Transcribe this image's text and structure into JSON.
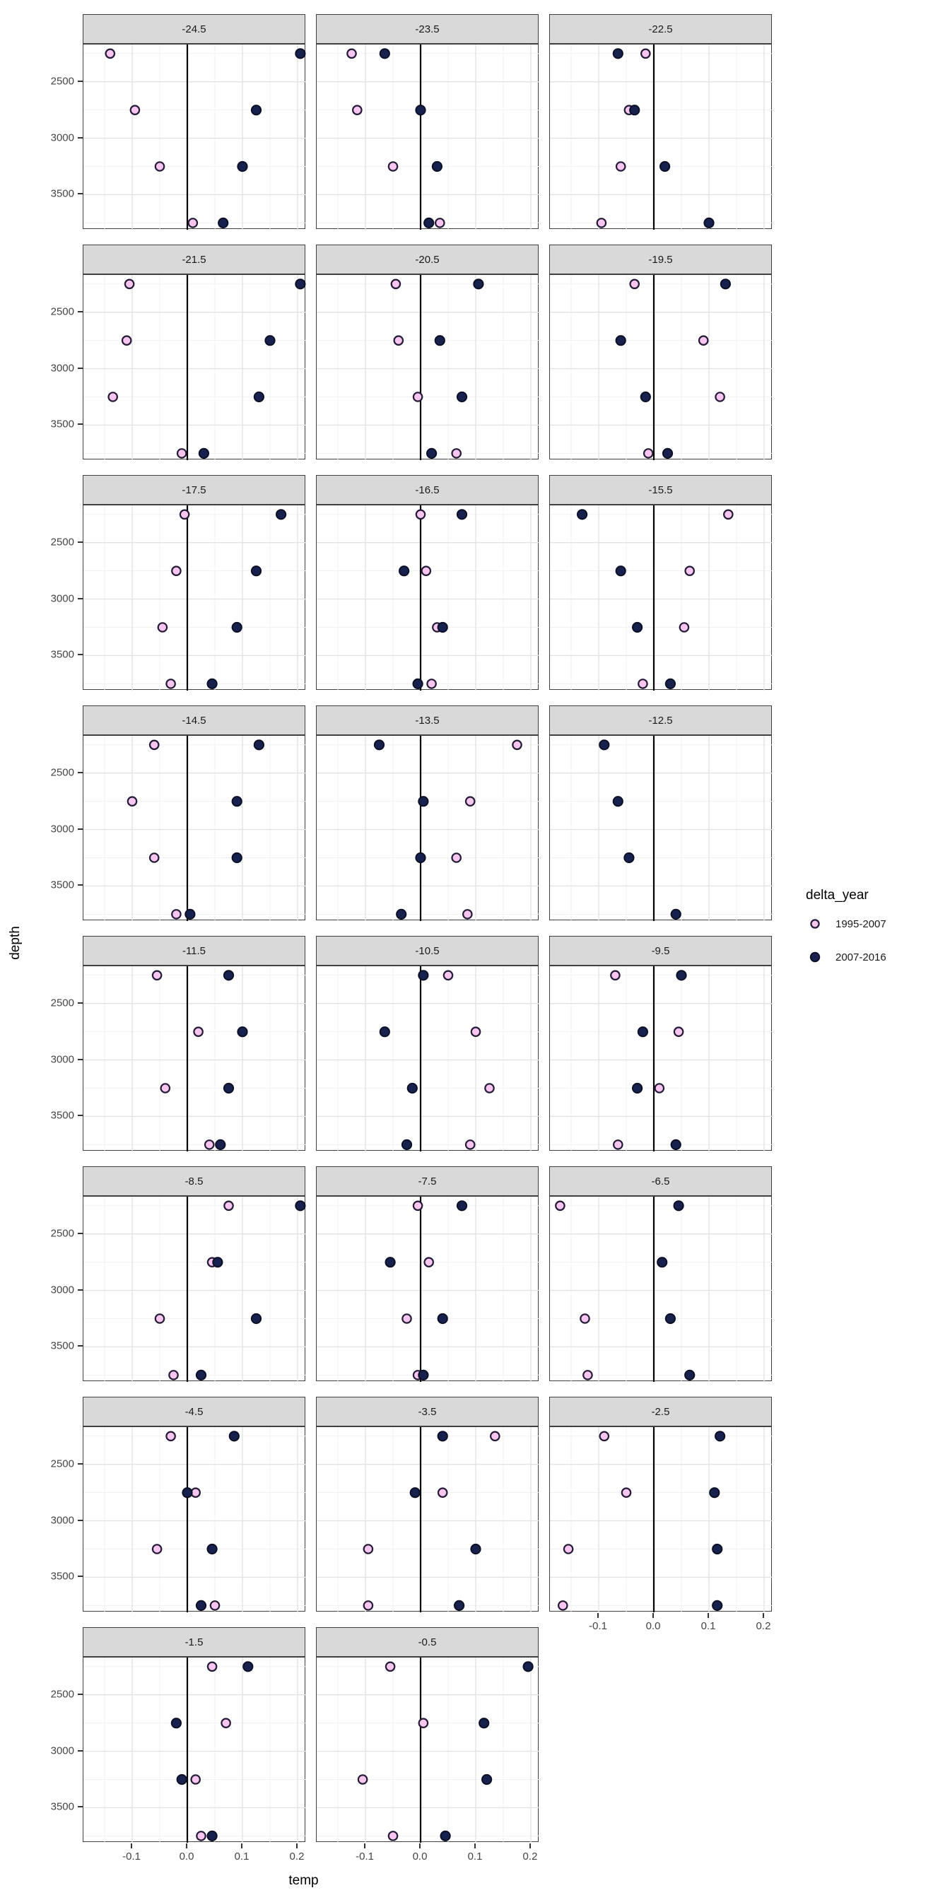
{
  "figure": {
    "background": "#ffffff"
  },
  "axes": {
    "x_title": "temp",
    "y_title": "depth",
    "x_tick_labels": [
      "-0.1",
      "0.0",
      "0.1",
      "0.2"
    ],
    "x_tick_values": [
      -0.1,
      0.0,
      0.1,
      0.2
    ],
    "y_tick_labels": [
      "2500",
      "3000",
      "3500"
    ],
    "y_tick_values": [
      2500,
      3000,
      3500
    ]
  },
  "legend": {
    "title": "delta_year",
    "items": [
      {
        "label": "1995-2007",
        "glyph": "open-circle"
      },
      {
        "label": "2007-2016",
        "glyph": "filled-circle"
      }
    ]
  },
  "colors": {
    "open_fill": "#f7c5ee",
    "open_stroke": "#241b38",
    "filled_fill": "#17214d",
    "filled_stroke": "#0b1026",
    "header_bg": "#d9d9d9",
    "panel_border": "#404040",
    "grid_major": "#e3e3e3",
    "grid_minor": "#f1f1f1",
    "zero_line": "#000000",
    "tick_label": "#454545"
  },
  "chart_data": {
    "type": "scatter",
    "facet_variable": "latitude_band",
    "x_label": "temp",
    "y_label": "depth",
    "x_domain": [
      -0.1885,
      0.2154
    ],
    "y_domain": [
      2170,
      3810
    ],
    "y_reversed": true,
    "grid": "on",
    "legend_position": "right",
    "series_names": [
      "1995-2007",
      "2007-2016"
    ],
    "depth_levels": [
      2250,
      2750,
      3250,
      3750
    ],
    "facets": [
      {
        "label": "-24.5",
        "s1995_2007": [
          [
            -0.14,
            2250
          ],
          [
            -0.095,
            2750
          ],
          [
            -0.05,
            3250
          ],
          [
            0.01,
            3750
          ]
        ],
        "s2007_2016": [
          [
            0.205,
            2250
          ],
          [
            0.125,
            2750
          ],
          [
            0.1,
            3250
          ],
          [
            0.065,
            3750
          ]
        ]
      },
      {
        "label": "-23.5",
        "s1995_2007": [
          [
            -0.125,
            2250
          ],
          [
            -0.115,
            2750
          ],
          [
            -0.05,
            3250
          ],
          [
            0.035,
            3750
          ]
        ],
        "s2007_2016": [
          [
            -0.065,
            2250
          ],
          [
            0.0,
            2750
          ],
          [
            0.03,
            3250
          ],
          [
            0.015,
            3750
          ]
        ]
      },
      {
        "label": "-22.5",
        "s1995_2007": [
          [
            -0.015,
            2250
          ],
          [
            -0.045,
            2750
          ],
          [
            -0.06,
            3250
          ],
          [
            -0.095,
            3750
          ]
        ],
        "s2007_2016": [
          [
            -0.065,
            2250
          ],
          [
            -0.035,
            2750
          ],
          [
            0.02,
            3250
          ],
          [
            0.1,
            3750
          ]
        ]
      },
      {
        "label": "-21.5",
        "s1995_2007": [
          [
            -0.105,
            2250
          ],
          [
            -0.11,
            2750
          ],
          [
            -0.135,
            3250
          ],
          [
            -0.01,
            3750
          ]
        ],
        "s2007_2016": [
          [
            0.205,
            2250
          ],
          [
            0.15,
            2750
          ],
          [
            0.13,
            3250
          ],
          [
            0.03,
            3750
          ]
        ]
      },
      {
        "label": "-20.5",
        "s1995_2007": [
          [
            -0.045,
            2250
          ],
          [
            -0.04,
            2750
          ],
          [
            -0.005,
            3250
          ],
          [
            0.065,
            3750
          ]
        ],
        "s2007_2016": [
          [
            0.105,
            2250
          ],
          [
            0.035,
            2750
          ],
          [
            0.075,
            3250
          ],
          [
            0.02,
            3750
          ]
        ]
      },
      {
        "label": "-19.5",
        "s1995_2007": [
          [
            -0.035,
            2250
          ],
          [
            0.09,
            2750
          ],
          [
            0.12,
            3250
          ],
          [
            -0.01,
            3750
          ]
        ],
        "s2007_2016": [
          [
            0.13,
            2250
          ],
          [
            -0.06,
            2750
          ],
          [
            -0.015,
            3250
          ],
          [
            0.025,
            3750
          ]
        ]
      },
      {
        "label": "-17.5",
        "s1995_2007": [
          [
            -0.005,
            2250
          ],
          [
            -0.02,
            2750
          ],
          [
            -0.045,
            3250
          ],
          [
            -0.03,
            3750
          ]
        ],
        "s2007_2016": [
          [
            0.17,
            2250
          ],
          [
            0.125,
            2750
          ],
          [
            0.09,
            3250
          ],
          [
            0.045,
            3750
          ]
        ]
      },
      {
        "label": "-16.5",
        "s1995_2007": [
          [
            0.0,
            2250
          ],
          [
            0.01,
            2750
          ],
          [
            0.03,
            3250
          ],
          [
            0.02,
            3750
          ]
        ],
        "s2007_2016": [
          [
            0.075,
            2250
          ],
          [
            -0.03,
            2750
          ],
          [
            0.04,
            3250
          ],
          [
            -0.005,
            3750
          ]
        ]
      },
      {
        "label": "-15.5",
        "s1995_2007": [
          [
            0.135,
            2250
          ],
          [
            0.065,
            2750
          ],
          [
            0.055,
            3250
          ],
          [
            -0.02,
            3750
          ]
        ],
        "s2007_2016": [
          [
            -0.13,
            2250
          ],
          [
            -0.06,
            2750
          ],
          [
            -0.03,
            3250
          ],
          [
            0.03,
            3750
          ]
        ]
      },
      {
        "label": "-14.5",
        "s1995_2007": [
          [
            -0.06,
            2250
          ],
          [
            -0.1,
            2750
          ],
          [
            -0.06,
            3250
          ],
          [
            -0.02,
            3750
          ]
        ],
        "s2007_2016": [
          [
            0.13,
            2250
          ],
          [
            0.09,
            2750
          ],
          [
            0.09,
            3250
          ],
          [
            0.005,
            3750
          ]
        ]
      },
      {
        "label": "-13.5",
        "s1995_2007": [
          [
            0.175,
            2250
          ],
          [
            0.09,
            2750
          ],
          [
            0.065,
            3250
          ],
          [
            0.085,
            3750
          ]
        ],
        "s2007_2016": [
          [
            -0.075,
            2250
          ],
          [
            0.005,
            2750
          ],
          [
            0.0,
            3250
          ],
          [
            -0.035,
            3750
          ]
        ]
      },
      {
        "label": "-12.5",
        "s1995_2007": [],
        "s2007_2016": [
          [
            -0.09,
            2250
          ],
          [
            -0.065,
            2750
          ],
          [
            -0.045,
            3250
          ],
          [
            0.04,
            3750
          ]
        ]
      },
      {
        "label": "-11.5",
        "s1995_2007": [
          [
            -0.055,
            2250
          ],
          [
            0.02,
            2750
          ],
          [
            -0.04,
            3250
          ],
          [
            0.04,
            3750
          ]
        ],
        "s2007_2016": [
          [
            0.075,
            2250
          ],
          [
            0.1,
            2750
          ],
          [
            0.075,
            3250
          ],
          [
            0.06,
            3750
          ]
        ]
      },
      {
        "label": "-10.5",
        "s1995_2007": [
          [
            0.05,
            2250
          ],
          [
            0.1,
            2750
          ],
          [
            0.125,
            3250
          ],
          [
            0.09,
            3750
          ]
        ],
        "s2007_2016": [
          [
            0.005,
            2250
          ],
          [
            -0.065,
            2750
          ],
          [
            -0.015,
            3250
          ],
          [
            -0.025,
            3750
          ]
        ]
      },
      {
        "label": "-9.5",
        "s1995_2007": [
          [
            -0.07,
            2250
          ],
          [
            0.045,
            2750
          ],
          [
            0.01,
            3250
          ],
          [
            -0.065,
            3750
          ]
        ],
        "s2007_2016": [
          [
            0.05,
            2250
          ],
          [
            -0.02,
            2750
          ],
          [
            -0.03,
            3250
          ],
          [
            0.04,
            3750
          ]
        ]
      },
      {
        "label": "-8.5",
        "s1995_2007": [
          [
            0.075,
            2250
          ],
          [
            0.045,
            2750
          ],
          [
            -0.05,
            3250
          ],
          [
            -0.025,
            3750
          ]
        ],
        "s2007_2016": [
          [
            0.205,
            2250
          ],
          [
            0.055,
            2750
          ],
          [
            0.125,
            3250
          ],
          [
            0.025,
            3750
          ]
        ]
      },
      {
        "label": "-7.5",
        "s1995_2007": [
          [
            -0.005,
            2250
          ],
          [
            0.015,
            2750
          ],
          [
            -0.025,
            3250
          ],
          [
            -0.005,
            3750
          ]
        ],
        "s2007_2016": [
          [
            0.075,
            2250
          ],
          [
            -0.055,
            2750
          ],
          [
            0.04,
            3250
          ],
          [
            0.005,
            3750
          ]
        ]
      },
      {
        "label": "-6.5",
        "s1995_2007": [
          [
            -0.17,
            2250
          ],
          [
            -0.125,
            3250
          ],
          [
            -0.12,
            3750
          ]
        ],
        "s2007_2016": [
          [
            0.045,
            2250
          ],
          [
            0.015,
            2750
          ],
          [
            0.03,
            3250
          ],
          [
            0.065,
            3750
          ]
        ]
      },
      {
        "label": "-4.5",
        "s1995_2007": [
          [
            -0.03,
            2250
          ],
          [
            0.015,
            2750
          ],
          [
            -0.055,
            3250
          ],
          [
            0.05,
            3750
          ]
        ],
        "s2007_2016": [
          [
            0.085,
            2250
          ],
          [
            0.0,
            2750
          ],
          [
            0.045,
            3250
          ],
          [
            0.025,
            3750
          ]
        ]
      },
      {
        "label": "-3.5",
        "s1995_2007": [
          [
            0.135,
            2250
          ],
          [
            0.04,
            2750
          ],
          [
            -0.095,
            3250
          ],
          [
            -0.095,
            3750
          ]
        ],
        "s2007_2016": [
          [
            0.04,
            2250
          ],
          [
            -0.01,
            2750
          ],
          [
            0.1,
            3250
          ],
          [
            0.07,
            3750
          ]
        ]
      },
      {
        "label": "-2.5",
        "s1995_2007": [
          [
            -0.09,
            2250
          ],
          [
            -0.05,
            2750
          ],
          [
            -0.155,
            3250
          ],
          [
            -0.165,
            3750
          ]
        ],
        "s2007_2016": [
          [
            0.12,
            2250
          ],
          [
            0.11,
            2750
          ],
          [
            0.115,
            3250
          ],
          [
            0.115,
            3750
          ]
        ]
      },
      {
        "label": "-1.5",
        "s1995_2007": [
          [
            0.045,
            2250
          ],
          [
            0.07,
            2750
          ],
          [
            0.015,
            3250
          ],
          [
            0.025,
            3750
          ]
        ],
        "s2007_2016": [
          [
            0.11,
            2250
          ],
          [
            -0.02,
            2750
          ],
          [
            -0.01,
            3250
          ],
          [
            0.045,
            3750
          ]
        ]
      },
      {
        "label": "-0.5",
        "s1995_2007": [
          [
            -0.055,
            2250
          ],
          [
            0.005,
            2750
          ],
          [
            -0.105,
            3250
          ],
          [
            -0.05,
            3750
          ]
        ],
        "s2007_2016": [
          [
            0.195,
            2250
          ],
          [
            0.115,
            2750
          ],
          [
            0.12,
            3250
          ],
          [
            0.045,
            3750
          ]
        ]
      }
    ]
  }
}
